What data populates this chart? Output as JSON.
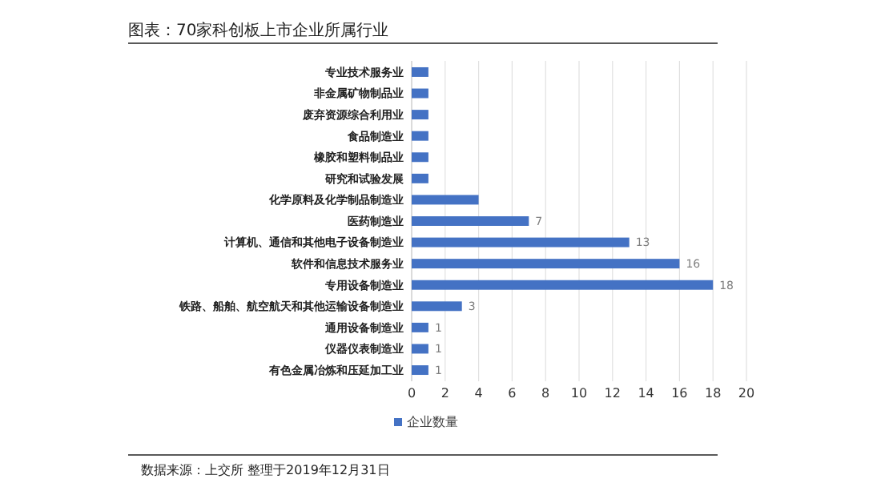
{
  "chart_data": {
    "type": "bar",
    "orientation": "horizontal",
    "title": "图表：70家科创板上市企业所属行业",
    "categories": [
      "专业技术服务业",
      "非金属矿物制品业",
      "废弃资源综合利用业",
      "食品制造业",
      "橡胶和塑料制品业",
      "研究和试验发展",
      "化学原料及化学制品制造业",
      "医药制造业",
      "计算机、通信和其他电子设备制造业",
      "软件和信息技术服务业",
      "专用设备制造业",
      "铁路、船舶、航空航天和其他运输设备制造业",
      "通用设备制造业",
      "仪器仪表制造业",
      "有色金属冶炼和压延加工业"
    ],
    "series": [
      {
        "name": "企业数量",
        "color": "#4472c4",
        "values": [
          1,
          1,
          1,
          1,
          1,
          1,
          4,
          7,
          13,
          16,
          18,
          3,
          1,
          1,
          1
        ],
        "value_labels": [
          null,
          null,
          null,
          null,
          null,
          null,
          null,
          "7",
          "13",
          "16",
          "18",
          "3",
          "1",
          "1",
          "1"
        ]
      }
    ],
    "xlim": [
      0,
      20
    ],
    "xticks": [
      0,
      2,
      4,
      6,
      8,
      10,
      12,
      14,
      16,
      18,
      20
    ],
    "grid": "x",
    "legend": "bottom",
    "annotations": [
      "数据来源：上交所 整理于2019年12月31日"
    ]
  }
}
